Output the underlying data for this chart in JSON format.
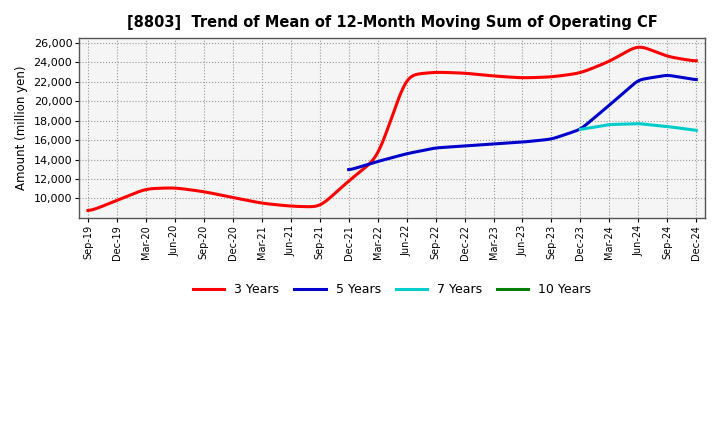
{
  "title": "[8803]  Trend of Mean of 12-Month Moving Sum of Operating CF",
  "ylabel": "Amount (million yen)",
  "background_color": "#ffffff",
  "plot_bg_color": "#f5f5f5",
  "grid_color": "#999999",
  "ylim": [
    8000,
    26500
  ],
  "yticks": [
    10000,
    12000,
    14000,
    16000,
    18000,
    20000,
    22000,
    24000,
    26000
  ],
  "x_labels": [
    "Sep-19",
    "Dec-19",
    "Mar-20",
    "Jun-20",
    "Sep-20",
    "Dec-20",
    "Mar-21",
    "Jun-21",
    "Sep-21",
    "Dec-21",
    "Mar-22",
    "Jun-22",
    "Sep-22",
    "Dec-22",
    "Mar-23",
    "Jun-23",
    "Sep-23",
    "Dec-23",
    "Mar-24",
    "Jun-24",
    "Sep-24",
    "Dec-24"
  ],
  "series": {
    "3yr": {
      "color": "#ff0000",
      "label": "3 Years",
      "values": [
        8600,
        9800,
        11000,
        11100,
        10700,
        10100,
        9500,
        9200,
        9100,
        11800,
        14200,
        22700,
        23000,
        22900,
        22600,
        22400,
        22500,
        22900,
        24100,
        25800,
        24600,
        24100
      ]
    },
    "5yr": {
      "color": "#0000cc",
      "label": "5 Years",
      "values": [
        null,
        null,
        null,
        null,
        null,
        null,
        null,
        null,
        null,
        12900,
        13800,
        14600,
        15200,
        15400,
        15600,
        15800,
        16100,
        17100,
        19600,
        22200,
        22700,
        22200
      ]
    },
    "7yr": {
      "color": "#00cccc",
      "label": "7 Years",
      "values": [
        null,
        null,
        null,
        null,
        null,
        null,
        null,
        null,
        null,
        null,
        null,
        null,
        null,
        null,
        null,
        null,
        null,
        17100,
        17600,
        17700,
        17400,
        17000
      ]
    },
    "10yr": {
      "color": "#008000",
      "label": "10 Years",
      "values": [
        null,
        null,
        null,
        null,
        null,
        null,
        null,
        null,
        null,
        null,
        null,
        null,
        null,
        null,
        null,
        null,
        null,
        null,
        null,
        null,
        null,
        null
      ]
    }
  }
}
